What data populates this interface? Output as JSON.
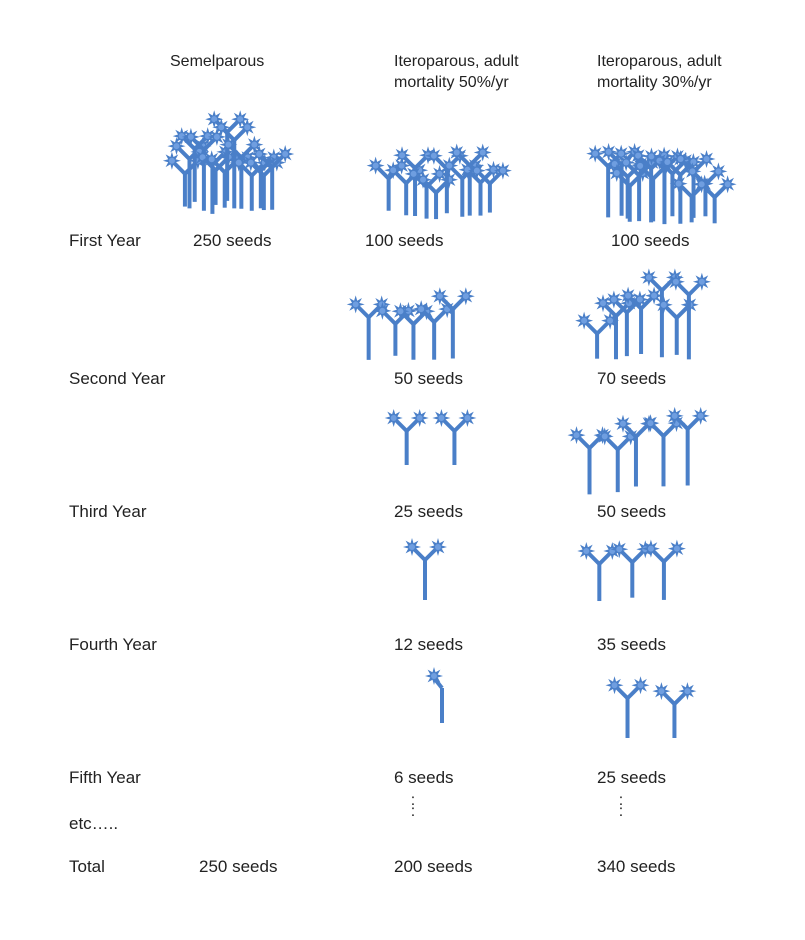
{
  "headers": {
    "semelparous": "Semelparous",
    "itero50_line1": "Iteroparous, adult",
    "itero50_line2": "mortality 50%/yr",
    "itero30_line1": "Iteroparous, adult",
    "itero30_line2": "mortality 30%/yr"
  },
  "rows": [
    {
      "label": "First Year",
      "semelparous": "250 seeds",
      "itero50": "100 seeds",
      "itero30": "100 seeds"
    },
    {
      "label": "Second Year",
      "semelparous": "",
      "itero50": "50 seeds",
      "itero30": "70 seeds"
    },
    {
      "label": "Third Year",
      "semelparous": "",
      "itero50": "25 seeds",
      "itero30": "50 seeds"
    },
    {
      "label": "Fourth Year",
      "semelparous": "",
      "itero50": "12 seeds",
      "itero30": "35 seeds"
    },
    {
      "label": "Fifth Year",
      "semelparous": "",
      "itero50": "6 seeds",
      "itero30": "25 seeds"
    }
  ],
  "etc_label": "etc…..",
  "continuation": ":\n:",
  "total": {
    "label": "Total",
    "semelparous": "250 seeds",
    "itero50": "200 seeds",
    "itero30": "340 seeds"
  },
  "colors": {
    "plant": "#4a7fc8",
    "plant_light": "#6f9ee0",
    "text": "#222222"
  },
  "icons": {
    "plant": "plant-icon"
  }
}
